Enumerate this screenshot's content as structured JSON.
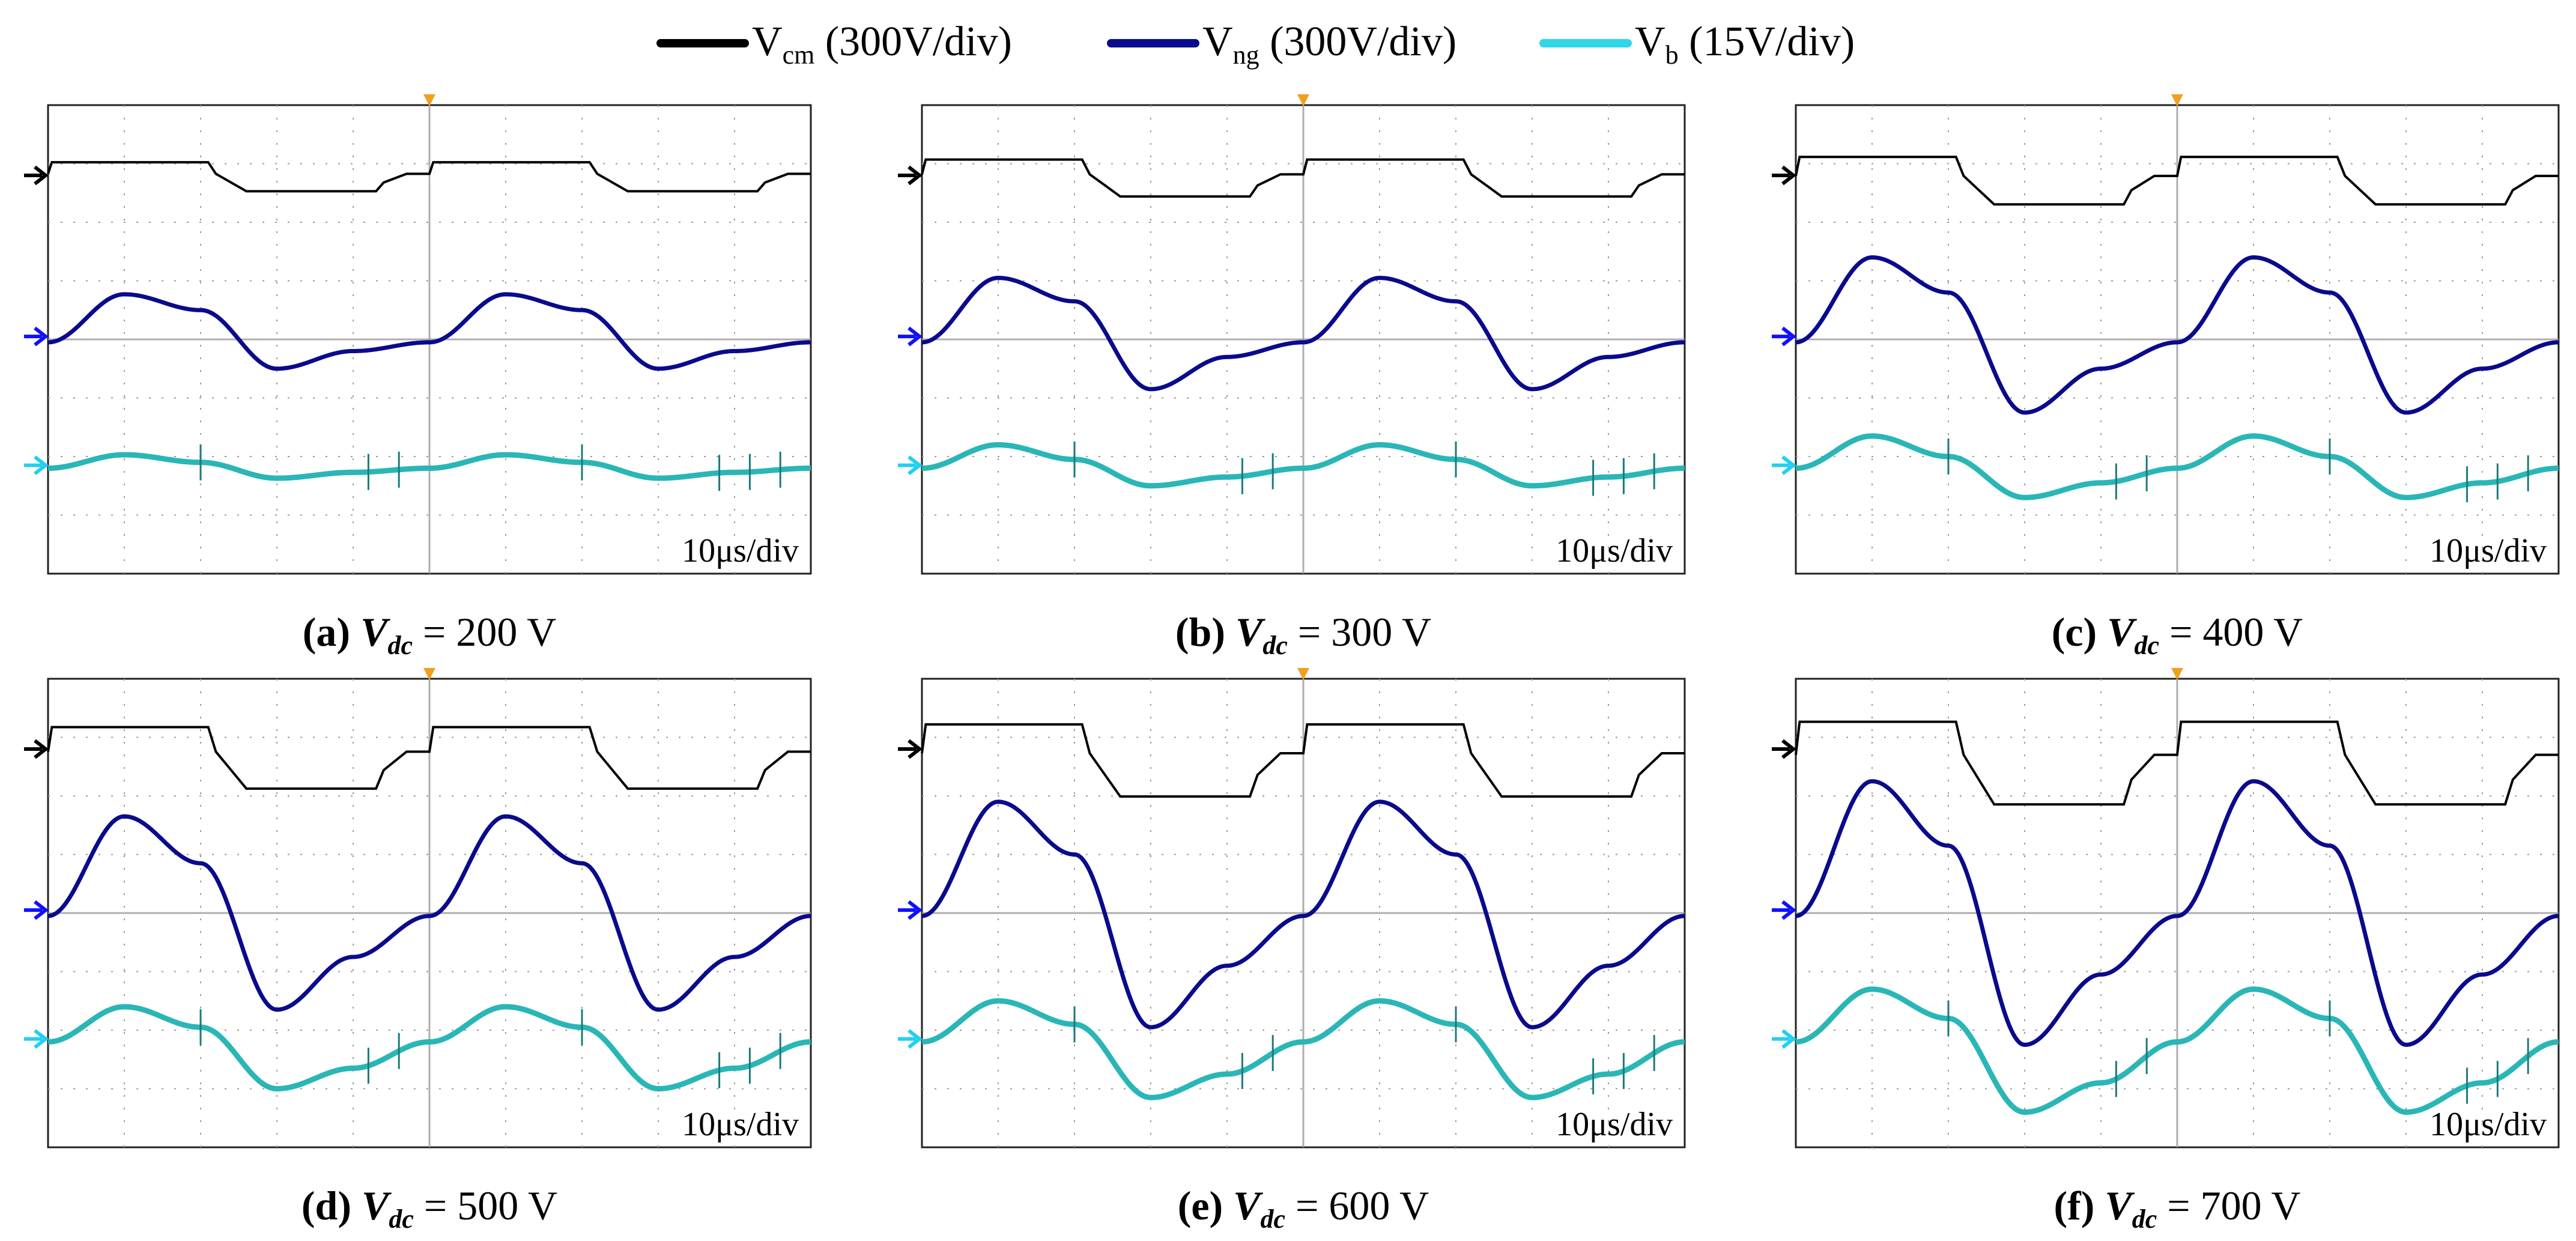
{
  "legend": [
    {
      "id": "vcm",
      "main": "V",
      "sub": "cm",
      "scale": "(300V/div)",
      "color": "#000000"
    },
    {
      "id": "vng",
      "main": "V",
      "sub": "ng",
      "scale": "(300V/div)",
      "color": "#0a0a8c"
    },
    {
      "id": "vb",
      "main": "V",
      "sub": "b",
      "scale": "(15V/div)",
      "color": "#2ed6e6"
    }
  ],
  "colors": {
    "vcm": "#000000",
    "vng": "#0a0a8c",
    "vb": "#2ab6b6",
    "vb_spike": "#1a7a7a",
    "trigger": "#f0a020",
    "grid_dot": "#9a9a9a",
    "frame": "#222222"
  },
  "chart_data": [
    {
      "type": "line",
      "caption": {
        "letter": "(a)",
        "var": "V",
        "var_sub": "dc",
        "text": " = 200 V"
      },
      "time_per_div": "10μs/div",
      "x_range_div": [
        0,
        10
      ],
      "y_range_div": [
        -4,
        4
      ],
      "series": [
        {
          "key": "vcm",
          "values": [
            [
              0.0,
              0.8
            ],
            [
              2.1,
              0.8
            ],
            [
              2.2,
              0.2
            ],
            [
              2.6,
              0.2
            ],
            [
              2.6,
              0.0
            ],
            [
              5.0,
              0.0
            ]
          ],
          "note": ""
        },
        {
          "key": "vng",
          "wave": [
            -0.1,
            0.8,
            0.5,
            -0.4,
            -0.1
          ]
        },
        {
          "key": "vb",
          "wave": [
            -0.1,
            0.3,
            0.0,
            -0.3,
            -0.1
          ]
        }
      ]
    }
  ]
}
